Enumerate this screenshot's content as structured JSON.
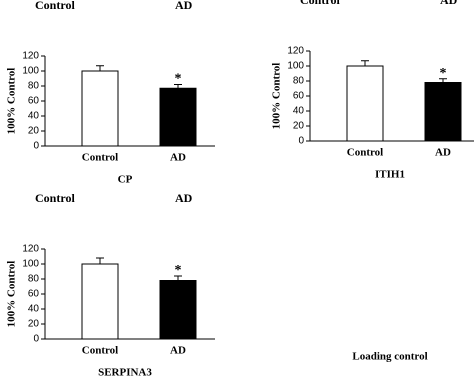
{
  "chart_data": [
    {
      "type": "bar",
      "title": "CP",
      "lane_labels": [
        "Control",
        "AD"
      ],
      "categories": [
        "Control",
        "AD"
      ],
      "values": [
        100,
        77
      ],
      "errors": [
        7,
        5
      ],
      "colors": [
        "#ffffff",
        "#000000"
      ],
      "ylabel": "100% Control",
      "ylim": [
        0,
        120
      ],
      "yticks": [
        0,
        20,
        40,
        60,
        80,
        100,
        120
      ],
      "significance": "*"
    },
    {
      "type": "bar",
      "title": "ITIH1",
      "lane_labels": [
        "Control",
        "AD"
      ],
      "categories": [
        "Control",
        "AD"
      ],
      "values": [
        100,
        78
      ],
      "errors": [
        7,
        5
      ],
      "colors": [
        "#ffffff",
        "#000000"
      ],
      "ylabel": "100% Control",
      "ylim": [
        0,
        120
      ],
      "yticks": [
        0,
        20,
        40,
        60,
        80,
        100,
        120
      ],
      "significance": "*"
    },
    {
      "type": "bar",
      "title": "SERPINA3",
      "lane_labels": [
        "Control",
        "AD"
      ],
      "categories": [
        "Control",
        "AD"
      ],
      "values": [
        100,
        78
      ],
      "errors": [
        8,
        6
      ],
      "colors": [
        "#ffffff",
        "#000000"
      ],
      "ylabel": "100% Control",
      "ylim": [
        0,
        120
      ],
      "yticks": [
        0,
        20,
        40,
        60,
        80,
        100,
        120
      ],
      "significance": "*"
    }
  ],
  "footer_label": "Loading control"
}
